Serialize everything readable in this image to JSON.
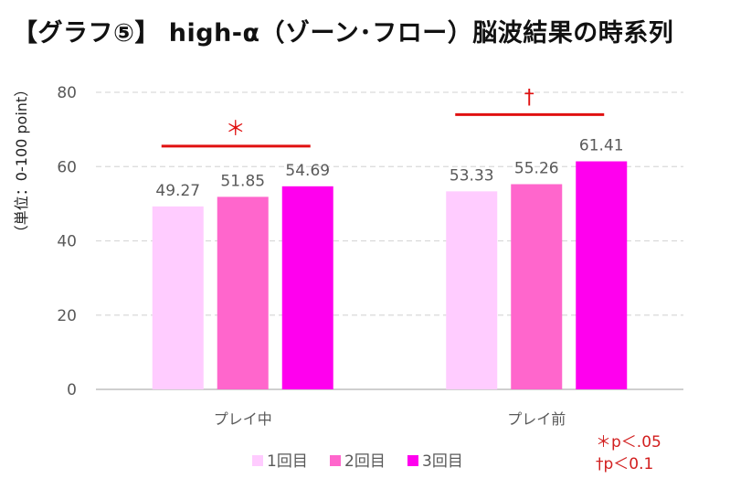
{
  "chart_data": {
    "type": "bar",
    "title": "【グラフ⑤】 high-α（ゾーン･フロー）脳波結果の時系列",
    "ylabel": "（単位：0-100 point）",
    "xlabel": "",
    "ylim": [
      0,
      80
    ],
    "yticks": [
      0,
      20,
      40,
      60,
      80
    ],
    "grid": true,
    "categories": [
      "プレイ中",
      "プレイ前"
    ],
    "series": [
      {
        "name": "1回目",
        "color": "#ffccff",
        "values": [
          49.27,
          53.33
        ],
        "labels": [
          "49.27",
          "53.33"
        ]
      },
      {
        "name": "2回目",
        "color": "#ff66cc",
        "values": [
          51.85,
          55.26
        ],
        "labels": [
          "51.85",
          "55.26"
        ]
      },
      {
        "name": "3回目",
        "color": "#ff00ee",
        "values": [
          54.69,
          61.41
        ],
        "labels": [
          "54.69",
          "61.41"
        ]
      }
    ],
    "legend_position": "bottom",
    "significance": [
      {
        "category": "プレイ中",
        "symbol": "＊",
        "level": 65.5
      },
      {
        "category": "プレイ前",
        "symbol": "†",
        "level": 74
      }
    ],
    "annotations": [
      "＊p＜.05",
      "†p＜0.1"
    ],
    "colors": {
      "marker": "#e01010",
      "axis": "#bfbfbf",
      "grid": "#d9d9d9",
      "text": "#595959"
    }
  }
}
